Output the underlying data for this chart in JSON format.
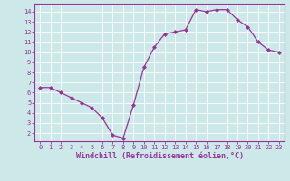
{
  "x": [
    0,
    1,
    2,
    3,
    4,
    5,
    6,
    7,
    8,
    9,
    10,
    11,
    12,
    13,
    14,
    15,
    16,
    17,
    18,
    19,
    20,
    21,
    22,
    23
  ],
  "y": [
    6.5,
    6.5,
    6.0,
    5.5,
    5.0,
    4.5,
    3.5,
    1.8,
    1.5,
    4.8,
    8.5,
    10.5,
    11.8,
    12.0,
    12.2,
    14.2,
    14.0,
    14.2,
    14.2,
    13.2,
    12.5,
    11.0,
    10.2,
    10.0
  ],
  "line_color": "#993399",
  "marker": "D",
  "marker_size": 2.0,
  "linewidth": 0.9,
  "xlabel": "Windchill (Refroidissement éolien,°C)",
  "xlabel_fontsize": 6.0,
  "xlabel_fontweight": "bold",
  "xlim": [
    -0.5,
    23.5
  ],
  "ylim": [
    1.2,
    14.8
  ],
  "yticks": [
    2,
    3,
    4,
    5,
    6,
    7,
    8,
    9,
    10,
    11,
    12,
    13,
    14
  ],
  "xticks": [
    0,
    1,
    2,
    3,
    4,
    5,
    6,
    7,
    8,
    9,
    10,
    11,
    12,
    13,
    14,
    15,
    16,
    17,
    18,
    19,
    20,
    21,
    22,
    23
  ],
  "bg_color": "#cce8e8",
  "grid_color": "#ffffff",
  "tick_color": "#993399",
  "tick_fontsize": 5.0,
  "spine_color": "#993399",
  "font_family": "monospace"
}
